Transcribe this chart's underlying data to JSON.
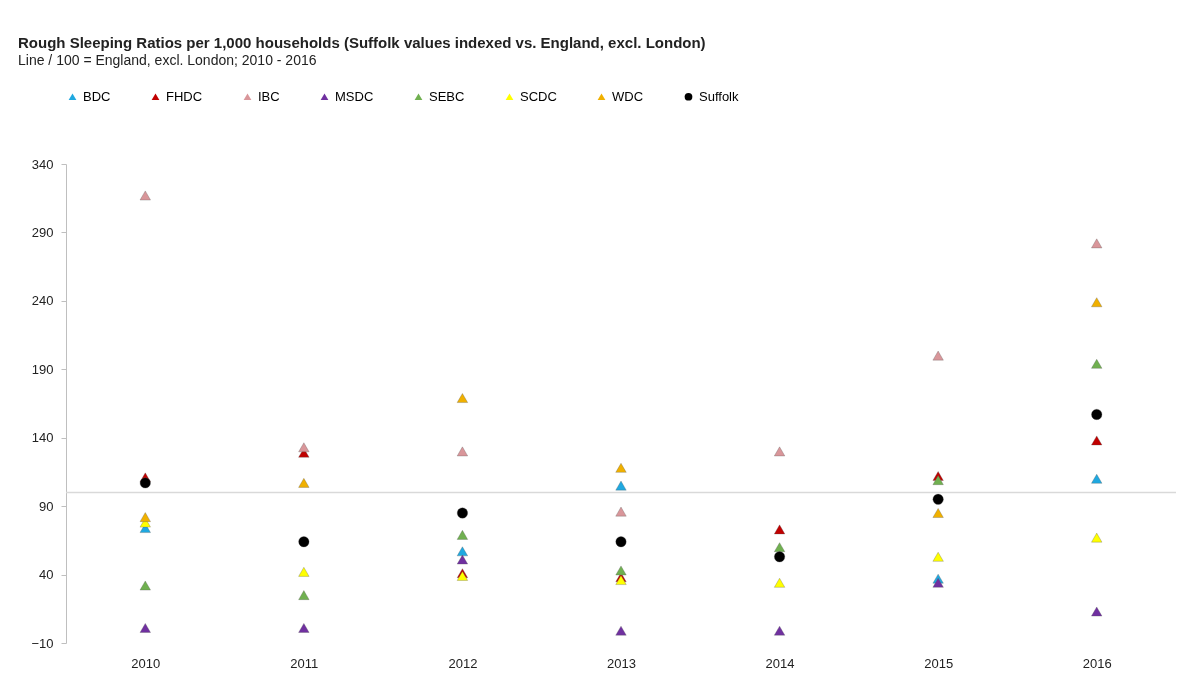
{
  "chart_data": {
    "type": "scatter",
    "title": "Rough Sleeping Ratios per 1,000 households (Suffolk values indexed vs. England, excl. London)",
    "subtitle": "Line / 100 = England, excl. London; 2010 - 2016",
    "categories": [
      "2010",
      "2011",
      "2012",
      "2013",
      "2014",
      "2015",
      "2016"
    ],
    "series": [
      {
        "name": "BDC",
        "color": "#1fa8e0",
        "marker": "triangle",
        "values": [
          74,
          null,
          57,
          105,
          null,
          37,
          110
        ]
      },
      {
        "name": "FHDC",
        "color": "#c00000",
        "marker": "triangle",
        "values": [
          111,
          129,
          41,
          38,
          73,
          112,
          138
        ]
      },
      {
        "name": "IBC",
        "color": "#d9969a",
        "marker": "triangle",
        "values": [
          317,
          133,
          130,
          86,
          130,
          200,
          282
        ]
      },
      {
        "name": "MSDC",
        "color": "#7030a0",
        "marker": "triangle",
        "values": [
          1,
          1,
          51,
          -1,
          -1,
          34,
          13
        ]
      },
      {
        "name": "SEBC",
        "color": "#70b050",
        "marker": "triangle",
        "values": [
          32,
          25,
          69,
          43,
          60,
          109,
          194
        ]
      },
      {
        "name": "SCDC",
        "color": "#ffff00",
        "marker": "triangle",
        "values": [
          78,
          42,
          39,
          36,
          34,
          53,
          67
        ]
      },
      {
        "name": "WDC",
        "color": "#f0b000",
        "marker": "triangle",
        "values": [
          82,
          107,
          169,
          118,
          null,
          85,
          239
        ]
      },
      {
        "name": "Suffolk",
        "color": "#000000",
        "marker": "circle",
        "values": [
          107,
          64,
          85,
          64,
          53,
          95,
          157
        ]
      }
    ],
    "ylim": [
      -10,
      340
    ],
    "yticks": [
      -10,
      40,
      90,
      140,
      190,
      240,
      290,
      340
    ],
    "ref_lines": [
      {
        "axis": "y",
        "value": 100,
        "color": "#d9d9d9"
      }
    ],
    "grid": false,
    "legend": "top left"
  }
}
